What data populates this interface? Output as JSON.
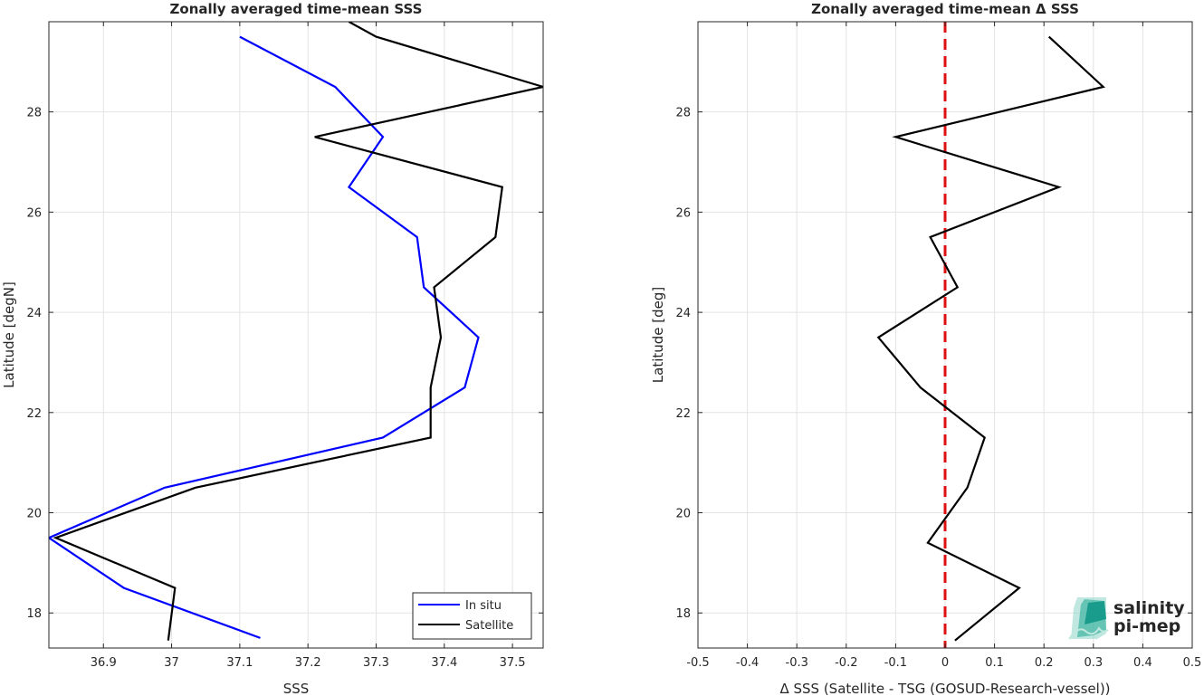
{
  "logo": {
    "line1": "salinity",
    "line2": "pi-mep"
  },
  "chart_data": [
    {
      "type": "line",
      "title": "Zonally averaged time-mean SSS",
      "xlabel": "SSS",
      "ylabel": "Latitude [degN]",
      "xlim": [
        36.82,
        37.545
      ],
      "ylim": [
        17.3,
        29.8
      ],
      "xticks": [
        36.9,
        37.0,
        37.1,
        37.2,
        37.3,
        37.4,
        37.5
      ],
      "xtick_labels": [
        "36.9",
        "37",
        "37.1",
        "37.2",
        "37.3",
        "37.4",
        "37.5"
      ],
      "yticks": [
        18,
        20,
        22,
        24,
        26,
        28
      ],
      "ytick_labels": [
        "18",
        "20",
        "22",
        "24",
        "26",
        "28"
      ],
      "grid": true,
      "legend_position": "bottom-right",
      "series": [
        {
          "name": "In situ",
          "color": "#0000ff",
          "x": [
            37.13,
            36.93,
            36.82,
            36.99,
            37.31,
            37.43,
            37.45,
            37.37,
            37.36,
            37.26,
            37.31,
            37.24,
            37.1
          ],
          "y": [
            17.5,
            18.5,
            19.5,
            20.5,
            21.5,
            22.5,
            23.5,
            24.5,
            25.5,
            26.5,
            27.5,
            28.5,
            29.5
          ]
        },
        {
          "name": "Satellite",
          "color": "#000000",
          "x": [
            36.995,
            37.005,
            36.83,
            37.035,
            37.38,
            37.38,
            37.395,
            37.385,
            37.475,
            37.485,
            37.21,
            37.545,
            37.3,
            37.26
          ],
          "y": [
            17.45,
            18.5,
            19.5,
            20.5,
            21.5,
            22.5,
            23.5,
            24.5,
            25.5,
            26.5,
            27.5,
            28.5,
            29.5,
            29.8
          ]
        }
      ]
    },
    {
      "type": "line",
      "title": "Zonally averaged time-mean Δ SSS",
      "xlabel": "Δ SSS (Satellite - TSG (GOSUD-Research-vessel))",
      "ylabel": "Latitude [deg]",
      "xlim": [
        -0.5,
        0.5
      ],
      "ylim": [
        17.3,
        29.8
      ],
      "xticks": [
        -0.5,
        -0.4,
        -0.3,
        -0.2,
        -0.1,
        0,
        0.1,
        0.2,
        0.3,
        0.4,
        0.5
      ],
      "xtick_labels": [
        "-0.5",
        "-0.4",
        "-0.3",
        "-0.2",
        "-0.1",
        "0",
        "0.1",
        "0.2",
        "0.3",
        "0.4",
        "0.5"
      ],
      "yticks": [
        18,
        20,
        22,
        24,
        26,
        28
      ],
      "ytick_labels": [
        "18",
        "20",
        "22",
        "24",
        "26",
        "28"
      ],
      "grid": true,
      "reference_line": {
        "x": 0,
        "color": "#dd1111",
        "style": "dashed"
      },
      "series": [
        {
          "color": "#000000",
          "x": [
            0.02,
            0.15,
            -0.035,
            0.045,
            0.08,
            -0.05,
            -0.135,
            0.025,
            -0.03,
            0.23,
            -0.1,
            0.32,
            0.21
          ],
          "y": [
            17.45,
            18.5,
            19.4,
            20.5,
            21.5,
            22.5,
            23.5,
            24.5,
            25.5,
            26.5,
            27.5,
            28.5,
            29.5
          ]
        }
      ]
    }
  ]
}
